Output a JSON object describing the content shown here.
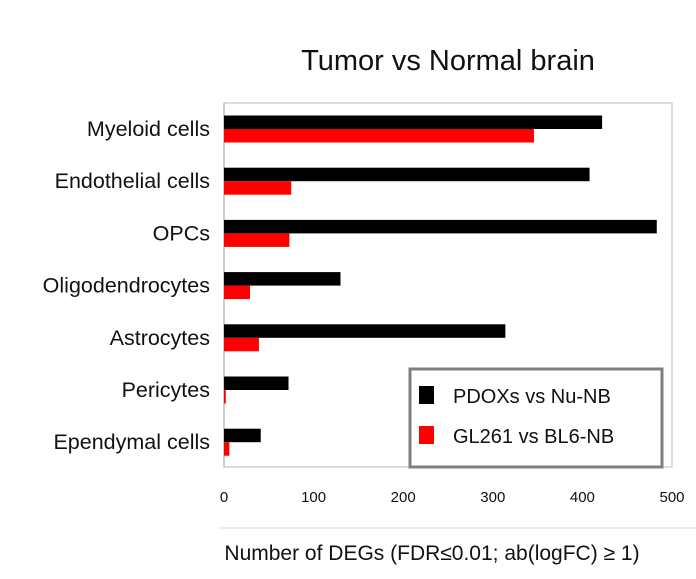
{
  "chart_data": {
    "type": "bar",
    "orientation": "horizontal",
    "title": "Tumor vs Normal brain",
    "xlabel": "Number of DEGs (FDR≤0.01; ab(logFC) ≥ 1)",
    "ylabel": "",
    "categories": [
      "Myeloid cells",
      "Endothelial cells",
      "OPCs",
      "Oligodendrocytes",
      "Astrocytes",
      "Pericytes",
      "Ependymal cells"
    ],
    "series": [
      {
        "name": "PDOXs vs Nu-NB",
        "color": "#000000",
        "values": [
          422,
          408,
          483,
          130,
          314,
          72,
          41
        ]
      },
      {
        "name": "GL261 vs BL6-NB",
        "color": "#ff0000",
        "values": [
          346,
          75,
          73,
          29,
          39,
          2,
          6
        ]
      }
    ],
    "xlim": [
      0,
      500
    ],
    "xticks": [
      0,
      100,
      200,
      300,
      400,
      500
    ],
    "legend_position": "bottom-right",
    "grid": false
  }
}
